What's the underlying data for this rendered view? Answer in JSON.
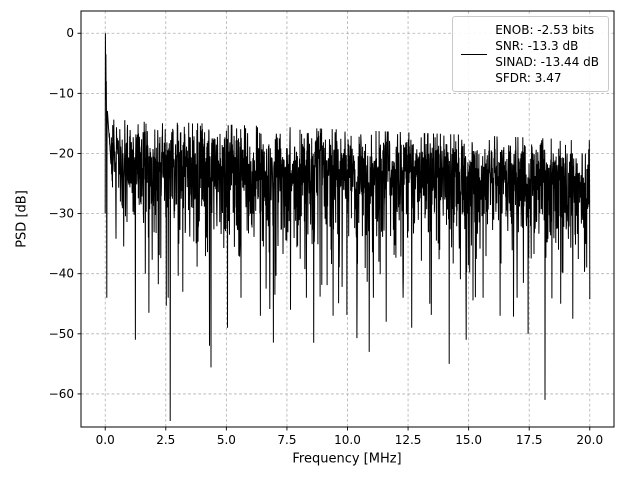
{
  "figure": {
    "xlabel": "Frequency [MHz]",
    "ylabel": "PSD [dB]",
    "background": "#ffffff",
    "axes_edge_color": "#000000",
    "grid_color": "#b0b0b0",
    "x_ticks": {
      "values": [
        0,
        2.5,
        5,
        7.5,
        10,
        12.5,
        15,
        17.5,
        20
      ],
      "labels": [
        "0.0",
        "2.5",
        "5.0",
        "7.5",
        "10.0",
        "12.5",
        "15.0",
        "17.5",
        "20.0"
      ]
    },
    "y_ticks": {
      "values": [
        0,
        -10,
        -20,
        -30,
        -40,
        -50,
        -60
      ],
      "labels": [
        "0",
        "−10",
        "−20",
        "−30",
        "−40",
        "−50",
        "−60"
      ]
    }
  },
  "legend": {
    "position": "upper right",
    "handle_color": "#000000",
    "lines": [
      "ENOB: -2.53 bits",
      "SNR: -13.3 dB",
      "SINAD: -13.44 dB",
      "SFDR: 3.47"
    ]
  },
  "chart_data": {
    "type": "line",
    "title": "",
    "xlabel": "Frequency [MHz]",
    "ylabel": "PSD [dB]",
    "xlim": [
      -1,
      21
    ],
    "ylim": [
      -65.5,
      3.7
    ],
    "grid": true,
    "grid_style": "dashed",
    "legend_position": "upper right",
    "metrics": {
      "ENOB_bits": -2.53,
      "SNR_dB": -13.3,
      "SINAD_dB": -13.44,
      "SFDR": 3.47
    },
    "series": [
      {
        "name": "PSD",
        "color": "#000000",
        "line_width": 1,
        "description": "Dense noisy PSD trace of a digitized signal, 0 to 20 MHz",
        "n_points": 2200,
        "x_range": [
          0,
          20
        ],
        "dc_peak": {
          "x": 0.02,
          "y_db": 0
        },
        "dc_shoulder_db": [
          -30,
          0,
          -7,
          -3.5,
          -11,
          -8,
          -15,
          -44,
          -19,
          -13
        ],
        "noise_floor_db_at_0MHz": -20.5,
        "noise_floor_db_at_20MHz": -24,
        "noise_band_top_db": -15,
        "noise_band_bottom_db": -38,
        "noise_db_clamp": [
          -64.5,
          6.2
        ],
        "min_value": {
          "x": 18.15,
          "y": -61
        },
        "deep_nulls": [
          {
            "x": 1.25,
            "y": -51
          },
          {
            "x": 1.8,
            "y": -46.5
          },
          {
            "x": 2.6,
            "y": -44
          },
          {
            "x": 3.2,
            "y": -43
          },
          {
            "x": 4.3,
            "y": -52
          },
          {
            "x": 5.05,
            "y": -49
          },
          {
            "x": 5.6,
            "y": -44
          },
          {
            "x": 6.4,
            "y": -47
          },
          {
            "x": 7.0,
            "y": -43.5
          },
          {
            "x": 7.65,
            "y": -46
          },
          {
            "x": 8.3,
            "y": -44
          },
          {
            "x": 8.6,
            "y": -51.5
          },
          {
            "x": 9.4,
            "y": -47
          },
          {
            "x": 10.4,
            "y": -44
          },
          {
            "x": 10.9,
            "y": -53
          },
          {
            "x": 11.6,
            "y": -48
          },
          {
            "x": 12.3,
            "y": -44
          },
          {
            "x": 12.65,
            "y": -49
          },
          {
            "x": 13.4,
            "y": -45
          },
          {
            "x": 14.2,
            "y": -55
          },
          {
            "x": 14.9,
            "y": -51
          },
          {
            "x": 15.6,
            "y": -44
          },
          {
            "x": 16.3,
            "y": -47
          },
          {
            "x": 17.0,
            "y": -44
          },
          {
            "x": 17.45,
            "y": -50
          },
          {
            "x": 18.15,
            "y": -61
          },
          {
            "x": 18.8,
            "y": -45
          },
          {
            "x": 19.3,
            "y": -47.5
          }
        ]
      }
    ]
  }
}
